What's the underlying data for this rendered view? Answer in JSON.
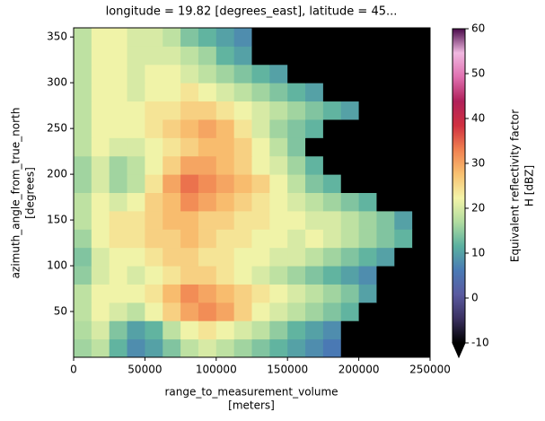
{
  "chart_data": {
    "type": "heatmap",
    "title": "longitude = 19.82 [degrees_east], latitude = 45...",
    "xlabel": [
      "range_to_measurement_volume",
      "[meters]"
    ],
    "ylabel": [
      "azimuth_angle_from_true_north",
      "[degrees]"
    ],
    "colorbar_label": [
      "Equivalent reflectivity factor",
      "H [dBZ]"
    ],
    "x_edges": [
      0,
      12500,
      25000,
      37500,
      50000,
      62500,
      75000,
      87500,
      100000,
      112500,
      125000,
      137500,
      150000,
      162500,
      175000,
      187500,
      200000,
      212500,
      225000,
      237500,
      250000
    ],
    "y_edges": [
      0,
      20,
      40,
      60,
      80,
      100,
      120,
      140,
      160,
      180,
      200,
      220,
      240,
      260,
      280,
      300,
      320,
      340,
      360
    ],
    "values": [
      [
        16,
        18,
        12,
        8,
        10,
        14,
        18,
        20,
        18,
        16,
        14,
        12,
        10,
        8,
        6,
        -10,
        -10,
        -10,
        -10,
        -10
      ],
      [
        17,
        20,
        14,
        10,
        12,
        18,
        22,
        24,
        22,
        20,
        18,
        15,
        12,
        10,
        8,
        -10,
        -10,
        -10,
        -10,
        -10
      ],
      [
        18,
        22,
        20,
        18,
        22,
        26,
        30,
        32,
        30,
        26,
        22,
        20,
        18,
        16,
        14,
        12,
        -10,
        -10,
        -10,
        -10
      ],
      [
        18,
        22,
        22,
        22,
        24,
        28,
        32,
        30,
        28,
        26,
        24,
        22,
        20,
        18,
        16,
        14,
        10,
        -10,
        -10,
        -10
      ],
      [
        15,
        20,
        22,
        20,
        22,
        24,
        26,
        26,
        24,
        22,
        20,
        18,
        16,
        14,
        12,
        10,
        8,
        -10,
        -10,
        -10
      ],
      [
        14,
        20,
        22,
        22,
        24,
        26,
        26,
        24,
        24,
        22,
        22,
        20,
        20,
        18,
        16,
        14,
        12,
        10,
        -10,
        -10
      ],
      [
        16,
        22,
        24,
        24,
        26,
        26,
        28,
        26,
        24,
        24,
        22,
        22,
        20,
        22,
        20,
        18,
        16,
        14,
        12,
        -10
      ],
      [
        18,
        22,
        24,
        24,
        26,
        28,
        28,
        26,
        26,
        24,
        24,
        22,
        22,
        20,
        20,
        18,
        16,
        14,
        10,
        -10
      ],
      [
        18,
        22,
        20,
        22,
        26,
        28,
        32,
        30,
        28,
        26,
        24,
        22,
        20,
        18,
        16,
        14,
        12,
        -10,
        -10,
        -10
      ],
      [
        16,
        20,
        16,
        18,
        24,
        30,
        34,
        32,
        30,
        28,
        26,
        22,
        18,
        14,
        12,
        -10,
        -10,
        -10,
        -10,
        -10
      ],
      [
        16,
        20,
        16,
        18,
        22,
        26,
        30,
        30,
        28,
        26,
        22,
        20,
        16,
        12,
        -10,
        -10,
        -10,
        -10,
        -10,
        -10
      ],
      [
        18,
        22,
        20,
        20,
        22,
        24,
        26,
        28,
        28,
        26,
        22,
        18,
        14,
        -10,
        -10,
        -10,
        -10,
        -10,
        -10,
        -10
      ],
      [
        18,
        22,
        22,
        22,
        24,
        26,
        28,
        30,
        28,
        24,
        20,
        16,
        14,
        12,
        -10,
        -10,
        -10,
        -10,
        -10,
        -10
      ],
      [
        18,
        22,
        22,
        22,
        24,
        24,
        26,
        26,
        24,
        22,
        20,
        18,
        16,
        14,
        12,
        10,
        -10,
        -10,
        -10,
        -10
      ],
      [
        18,
        22,
        22,
        20,
        22,
        22,
        24,
        22,
        20,
        18,
        16,
        14,
        12,
        10,
        -10,
        -10,
        -10,
        -10,
        -10,
        -10
      ],
      [
        18,
        22,
        22,
        20,
        22,
        22,
        20,
        18,
        16,
        14,
        12,
        10,
        -10,
        -10,
        -10,
        -10,
        -10,
        -10,
        -10,
        -10
      ],
      [
        18,
        22,
        22,
        20,
        20,
        20,
        18,
        16,
        12,
        10,
        -10,
        -10,
        -10,
        -10,
        -10,
        -10,
        -10,
        -10,
        -10,
        -10
      ],
      [
        18,
        22,
        22,
        20,
        20,
        18,
        14,
        12,
        10,
        8,
        -10,
        -10,
        -10,
        -10,
        -10,
        -10,
        -10,
        -10,
        -10,
        -10
      ]
    ],
    "xlim": [
      0,
      250000
    ],
    "xticks": [
      0,
      50000,
      100000,
      150000,
      200000,
      250000
    ],
    "ylim": [
      0,
      360
    ],
    "yticks": [
      50,
      100,
      150,
      200,
      250,
      300,
      350
    ],
    "clim": [
      -10,
      60
    ],
    "cticks": [
      -10,
      0,
      10,
      20,
      30,
      40,
      50,
      60
    ],
    "colormap": [
      "#000000",
      "#3a3060",
      "#5a5aa0",
      "#4a7ab5",
      "#5ab0a0",
      "#b0dca0",
      "#f4f4a8",
      "#f8c070",
      "#f08050",
      "#d03040",
      "#b0205a",
      "#e070b0",
      "#f0b8e0",
      "#4a0a4a"
    ]
  }
}
